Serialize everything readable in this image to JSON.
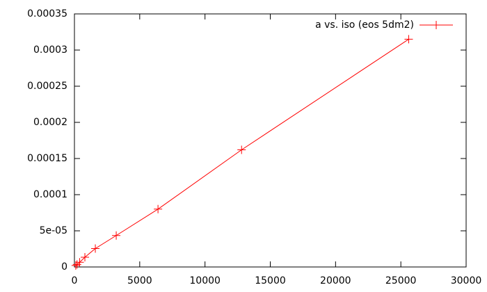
{
  "chart_data": {
    "type": "line",
    "x": [
      100,
      200,
      400,
      800,
      1600,
      3200,
      6400,
      12800,
      25600
    ],
    "series": [
      {
        "name": "a vs. iso (eos 5dm2)",
        "color": "#ff0000",
        "values": [
          2e-06,
          3.5e-06,
          6.5e-06,
          1.35e-05,
          2.55e-05,
          4.35e-05,
          8e-05,
          0.000162,
          0.000315
        ]
      }
    ],
    "xlim": [
      0,
      30000
    ],
    "xticks": [
      0,
      5000,
      10000,
      15000,
      20000,
      25000,
      30000
    ],
    "ylim": [
      0,
      0.00035
    ],
    "yticks": [
      0,
      {
        "value": 5e-05,
        "label": "5e-05"
      },
      0.0001,
      0.00015,
      0.0002,
      0.00025,
      0.0003,
      0.00035
    ],
    "grid": false,
    "legend": "top-right"
  }
}
